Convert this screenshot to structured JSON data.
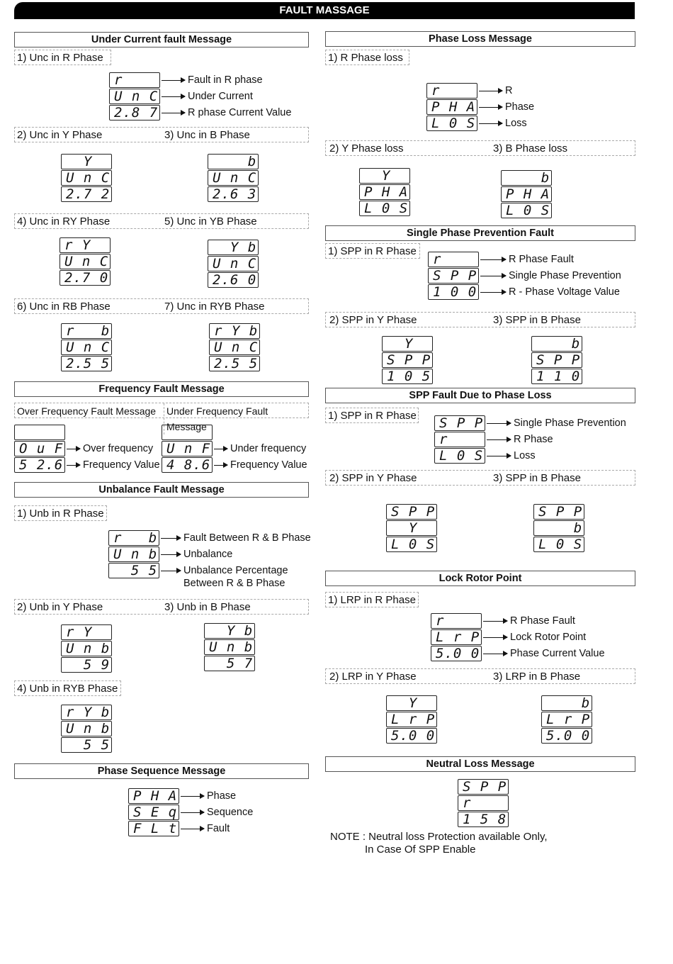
{
  "header": {
    "title": "FAULT MASSAGE"
  },
  "sections": {
    "under_current": {
      "title": "Under Current fault Message",
      "subs": [
        "1) Unc in R Phase",
        "2) Unc in Y Phase",
        "3) Unc in B Phase",
        "4) Unc in RY Phase",
        "5) Unc in YB Phase",
        "6) Unc in RB Phase",
        "7) Unc in RYB Phase"
      ]
    },
    "frequency": {
      "title": "Frequency Fault Message",
      "subs": [
        "Over Frequency Fault Message",
        "Under Frequency Fault Message"
      ]
    },
    "unbalance": {
      "title": "Unbalance Fault Message",
      "subs": [
        "1) Unb in R Phase",
        "2) Unb in Y Phase",
        "3) Unb in B Phase",
        "4) Unb in RYB Phase"
      ]
    },
    "phase_sequence": {
      "title": "Phase Sequence Message"
    },
    "phase_loss": {
      "title": "Phase Loss Message",
      "subs": [
        "1) R Phase loss",
        "2) Y Phase loss",
        "3) B Phase loss"
      ]
    },
    "spp": {
      "title": "Single Phase Prevention Fault",
      "subs": [
        "1) SPP in R Phase",
        "2) SPP in Y Phase",
        "3) SPP in B Phase"
      ]
    },
    "spp_loss": {
      "title": "SPP Fault Due to Phase Loss",
      "subs": [
        "1) SPP in R Phase",
        "2) SPP in Y Phase",
        "3) SPP in B Phase"
      ]
    },
    "lrp": {
      "title": "Lock Rotor Point",
      "subs": [
        "1) LRP in R Phase",
        "2) LRP in Y Phase",
        "3) LRP in B Phase"
      ]
    },
    "neutral": {
      "title": "Neutral Loss Message",
      "note": [
        "NOTE : Neutral loss Protection available Only,",
        "In Case Of SPP Enable"
      ]
    }
  },
  "displays": [
    {
      "rows": [
        "r",
        "U n C",
        "2.8 7"
      ],
      "labels": [
        "Fault in R phase",
        "Under Current",
        "R phase Current Value"
      ]
    },
    {
      "rows": [
        "  Y",
        "U n C",
        "2.7 2"
      ]
    },
    {
      "rows": [
        "    b",
        "U n C",
        "2.6 3"
      ]
    },
    {
      "rows": [
        "r Y",
        "U n C",
        "2.7 0"
      ]
    },
    {
      "rows": [
        "  Y b",
        "U n C",
        "2.6 0"
      ]
    },
    {
      "rows": [
        "r   b",
        "U n C",
        "2.5 5"
      ]
    },
    {
      "rows": [
        "r Y b",
        "U n C",
        "2.5 5"
      ]
    },
    {
      "rows": [
        "",
        "O u F",
        "5 2.6"
      ],
      "labels": [
        "",
        "Over frequency",
        "Frequency Value"
      ]
    },
    {
      "rows": [
        "",
        "U n F",
        "4 8.6"
      ],
      "labels": [
        "",
        "Under frequency",
        "Frequency Value"
      ]
    },
    {
      "rows": [
        "r   b",
        "U n b",
        "  5 5"
      ],
      "labels": [
        "Fault Between R & B Phase",
        "Unbalance",
        "Unbalance Percentage\nBetween R & B Phase"
      ]
    },
    {
      "rows": [
        "r Y",
        "U n b",
        "  5 9"
      ]
    },
    {
      "rows": [
        "  Y b",
        "U n b",
        "  5 7"
      ]
    },
    {
      "rows": [
        "r Y b",
        "U n b",
        "  5 5"
      ]
    },
    {
      "rows": [
        "P H A",
        "S E q",
        "F L t"
      ],
      "labels": [
        "Phase",
        "Sequence",
        "Fault"
      ]
    },
    {
      "rows": [
        "r",
        "P H A",
        "L 0 S"
      ],
      "labels": [
        "R",
        "Phase",
        "Loss"
      ]
    },
    {
      "rows": [
        "  Y",
        "P H A",
        "L 0 S"
      ]
    },
    {
      "rows": [
        "    b",
        "P H A",
        "L 0 S"
      ]
    },
    {
      "rows": [
        "r",
        "S P P",
        "1 0 0"
      ],
      "labels": [
        "R Phase Fault",
        "Single Phase Prevention",
        "R - Phase Voltage Value"
      ]
    },
    {
      "rows": [
        "  Y",
        "S P P",
        "1 0 5"
      ]
    },
    {
      "rows": [
        "    b",
        "S P P",
        "1 1 0"
      ]
    },
    {
      "rows": [
        "S P P",
        "r",
        "L 0 S"
      ],
      "labels": [
        "Single Phase Prevention",
        "R Phase",
        "Loss"
      ]
    },
    {
      "rows": [
        "S P P",
        "  Y",
        "L 0 S"
      ]
    },
    {
      "rows": [
        "S P P",
        "    b",
        "L 0 S"
      ]
    },
    {
      "rows": [
        "r",
        "L r P",
        "5.0 0"
      ],
      "labels": [
        "R Phase Fault",
        "Lock Rotor Point",
        "Phase Current Value"
      ]
    },
    {
      "rows": [
        "  Y",
        "L r P",
        "5.0 0"
      ]
    },
    {
      "rows": [
        "    b",
        "L r P",
        "5.0 0"
      ]
    },
    {
      "rows": [
        "S P P",
        "r",
        "1 5 8"
      ]
    }
  ]
}
